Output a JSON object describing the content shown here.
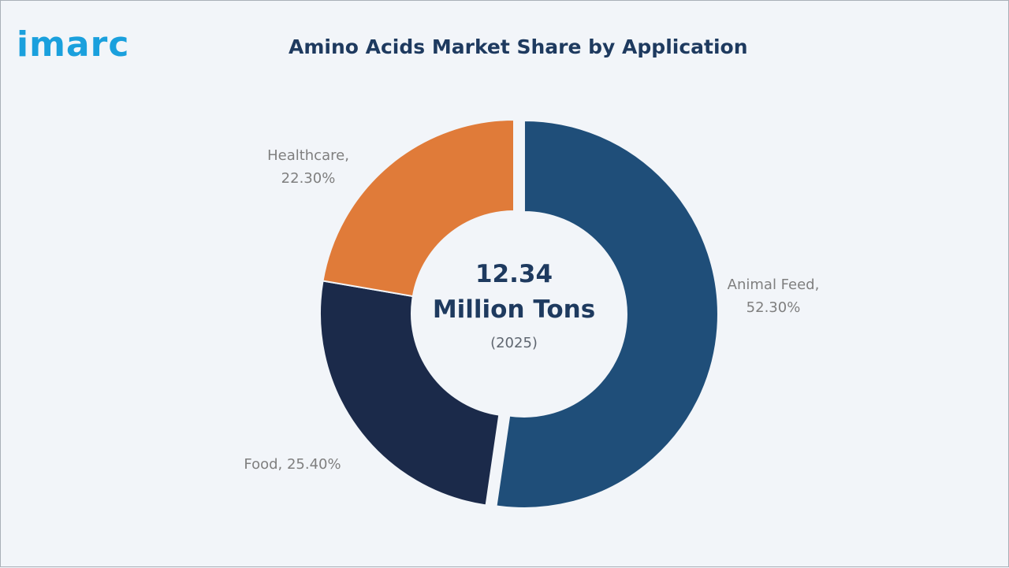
{
  "brand": {
    "logo_text": "imarc",
    "logo_color": "#1aa0dd"
  },
  "chart_data": {
    "type": "pie",
    "title": "Amino Acids Market Share by Application",
    "center_label": {
      "value": "12.34",
      "unit": "Million Tons",
      "year": "(2025)"
    },
    "slices": [
      {
        "name": "Animal Feed",
        "value": 52.3,
        "label_lines": [
          "Animal Feed,",
          "52.30%"
        ],
        "color": "#1f4e79"
      },
      {
        "name": "Food",
        "value": 25.4,
        "label_lines": [
          "Food, 25.40%"
        ],
        "color": "#1b2a4a"
      },
      {
        "name": "Healthcare",
        "value": 22.3,
        "label_lines": [
          "Healthcare,",
          "22.30%"
        ],
        "color": "#e07b39"
      }
    ],
    "donut": true,
    "legend": "none"
  }
}
